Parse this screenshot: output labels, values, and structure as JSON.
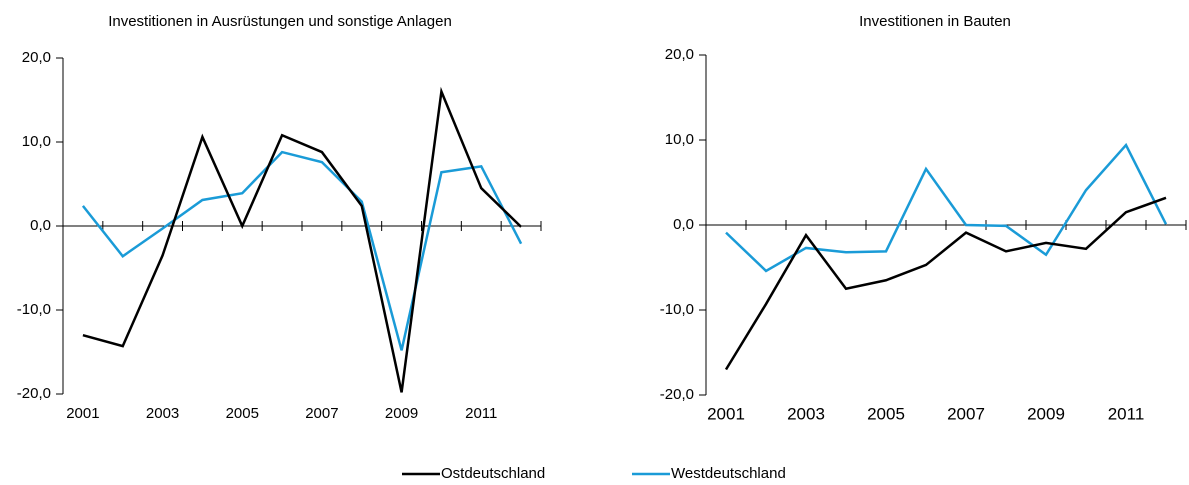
{
  "chart_data": [
    {
      "type": "line",
      "title": "Investitionen in Ausrüstungen und sonstige Anlagen",
      "categories": [
        "2001",
        null,
        "2003",
        null,
        "2005",
        null,
        "2007",
        null,
        "2009",
        null,
        "2011",
        null
      ],
      "series": [
        {
          "name": "Ostdeutschland",
          "color": "#000000",
          "values": [
            -13.0,
            -14.3,
            -3.5,
            10.6,
            0.0,
            10.8,
            8.8,
            2.4,
            -19.8,
            16.0,
            4.5,
            -0.1
          ]
        },
        {
          "name": "Westdeutschland",
          "color": "#1a9bd7",
          "values": [
            2.4,
            -3.6,
            -0.3,
            3.1,
            3.9,
            8.8,
            7.6,
            2.9,
            -14.8,
            6.4,
            7.1,
            -2.1
          ]
        }
      ],
      "ylim": [
        -20,
        20
      ],
      "yticks": [
        {
          "value": -20,
          "label": "-20,0"
        },
        {
          "value": -10,
          "label": "-10,0"
        },
        {
          "value": 0,
          "label": "0,0"
        },
        {
          "value": 10,
          "label": "10,0"
        },
        {
          "value": 20,
          "label": "20,0"
        }
      ]
    },
    {
      "type": "line",
      "title": "Investitionen in Bauten",
      "categories": [
        "2001",
        null,
        "2003",
        null,
        "2005",
        null,
        "2007",
        null,
        "2009",
        null,
        "2011",
        null
      ],
      "series": [
        {
          "color": "#000000",
          "values": [
            -17.0,
            -9.3,
            -1.2,
            -7.5,
            -6.5,
            -4.7,
            -0.9,
            -3.1,
            -2.1,
            -2.8,
            1.5,
            3.2
          ]
        },
        {
          "color": "#1a9bd7",
          "values": [
            -0.9,
            -5.4,
            -2.7,
            -3.2,
            -3.1,
            6.6,
            0.0,
            -0.1,
            -3.5,
            4.1,
            9.4,
            0.1
          ]
        }
      ],
      "ylim": [
        -20,
        20
      ],
      "yticks": [
        {
          "value": -20,
          "label": "-20,0"
        },
        {
          "value": -10,
          "label": "-10,0"
        },
        {
          "value": 0,
          "label": "0,0"
        },
        {
          "value": 10,
          "label": "10,0"
        },
        {
          "value": 20,
          "label": "20,0"
        }
      ]
    }
  ]
}
